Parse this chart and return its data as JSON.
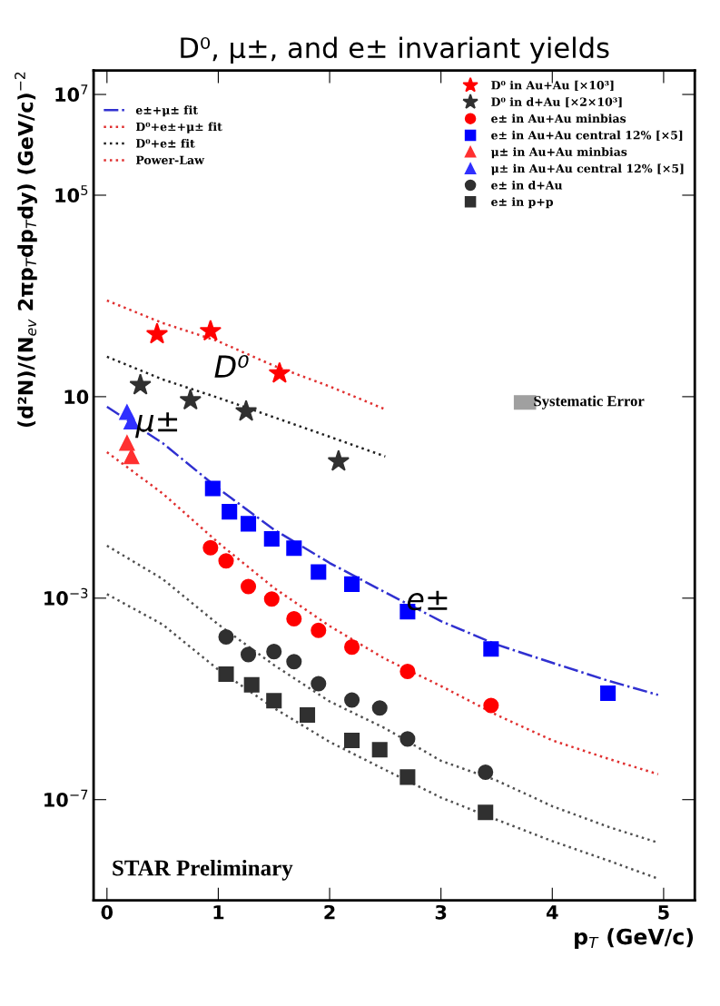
{
  "chart_data": {
    "type": "scatter",
    "title": "D⁰, μ±, and e± invariant yields",
    "xlabel": "p$_{T}$ (GeV/c)",
    "ylabel": "(d²N)/(N$_{ev}$ 2πp$_{T}$dp$_{T}$dy) (GeV/c)$^{−2}$",
    "log": "y",
    "xlim": [
      -0.12,
      5.28
    ],
    "ylim": [
      1e-09,
      30000000.0
    ],
    "xticks": [
      0,
      1,
      2,
      3,
      4,
      5
    ],
    "yticks": [
      {
        "value": 1e-07,
        "label": "10$^{−7}$"
      },
      {
        "value": 0.001,
        "label": "10$^{−3}$"
      },
      {
        "value": 10,
        "label": "10"
      },
      {
        "value": 100000,
        "label": "10$^{5}$"
      },
      {
        "value": 10000000,
        "label": "10$^{7}$"
      }
    ],
    "grid": false,
    "legend": "top",
    "series": [
      {
        "type": "line",
        "name": "e±+μ± fit",
        "color": "#3030d0",
        "line_style": "dashdot",
        "marker": "none",
        "x": [
          0,
          0.5,
          1,
          1.5,
          2,
          2.5,
          3,
          3.5,
          4,
          4.5,
          4.95
        ],
        "values": [
          6.3,
          1.2,
          0.15,
          0.023,
          0.005,
          0.0013,
          0.00035,
          0.00012,
          5.2e-05,
          2.3e-05,
          1.2e-05
        ]
      },
      {
        "type": "line",
        "name": "D⁰+e±+μ± fit",
        "color": "#e03030",
        "line_style": "dotted",
        "marker": "none",
        "x": [
          0,
          0.5,
          1,
          1.5,
          2,
          2.5
        ],
        "values": [
          810,
          290,
          126,
          41,
          16,
          5.6
        ]
      },
      {
        "type": "line",
        "name": "D⁰+e± fit",
        "color": "#202020",
        "line_style": "dotted",
        "marker": "none",
        "x": [
          0,
          0.5,
          1,
          1.5,
          2,
          2.5
        ],
        "values": [
          62,
          22,
          9.5,
          3.9,
          1.6,
          0.65
        ]
      },
      {
        "type": "line",
        "name": "Power-Law",
        "color": "#e03030",
        "line_style": "dotted",
        "marker": "none",
        "x": [
          0,
          0.5,
          1,
          1.5,
          2,
          2.5,
          3,
          3.5,
          4,
          4.5,
          4.95
        ],
        "values": [
          0.79,
          0.12,
          0.0126,
          0.0016,
          0.00028,
          6.2e-05,
          1.8e-05,
          4.8e-06,
          1.5e-06,
          6.5e-07,
          3.2e-07
        ]
      },
      {
        "type": "line",
        "color": "#505050",
        "line_style": "dotted",
        "marker": "none",
        "x": [
          0,
          0.5,
          1,
          1.5,
          2,
          2.5,
          3,
          3.5,
          4,
          4.5,
          4.95
        ],
        "values": [
          0.011,
          0.0024,
          0.0003,
          4.7e-05,
          8.9e-06,
          2.6e-06,
          5.9e-07,
          2.4e-07,
          7.4e-08,
          2.9e-08,
          1.4e-08
        ]
      },
      {
        "type": "line",
        "color": "#505050",
        "line_style": "dotted",
        "marker": "none",
        "x": [
          0,
          0.5,
          1,
          1.5,
          2,
          2.5,
          3,
          3.5,
          4,
          4.5,
          4.95
        ],
        "values": [
          0.0012,
          0.0003,
          3.8e-05,
          6.6e-06,
          1.4e-06,
          3.9e-07,
          1.1e-07,
          4e-08,
          1.5e-08,
          6.2e-09,
          2.7e-09
        ]
      },
      {
        "name": "D⁰ in Au+Au [×10³]",
        "color": "#ff0000",
        "marker": "star",
        "x": [
          0.45,
          0.93,
          1.55
        ],
        "values": [
          174,
          200,
          29
        ]
      },
      {
        "name": "D⁰ in d+Au [×2×10³]",
        "color": "#303030",
        "marker": "star",
        "x": [
          0.3,
          0.75,
          1.25,
          2.08
        ],
        "values": [
          17,
          8.5,
          5.1,
          0.52
        ]
      },
      {
        "name": "e± in Au+Au minbias",
        "color": "#ff0000",
        "marker": "circle",
        "x": [
          0.93,
          1.07,
          1.27,
          1.48,
          1.68,
          1.9,
          2.2,
          2.7,
          3.45
        ],
        "values": [
          0.01,
          0.0055,
          0.0017,
          0.00096,
          0.00039,
          0.00023,
          0.000107,
          3.5e-05,
          7.4e-06
        ]
      },
      {
        "name": "e± in Au+Au central 12% [×5]",
        "color": "#0000ff",
        "marker": "square",
        "x": [
          0.95,
          1.1,
          1.27,
          1.48,
          1.68,
          1.9,
          2.2,
          2.7,
          3.45,
          4.5
        ],
        "values": [
          0.15,
          0.052,
          0.03,
          0.015,
          0.0098,
          0.0033,
          0.0019,
          0.00054,
          9.8e-05,
          1.3e-05
        ]
      },
      {
        "name": "μ± in Au+Au minbias",
        "color": "#ff3030",
        "marker": "triangle",
        "x": [
          0.18,
          0.22
        ],
        "values": [
          1.2,
          0.65
        ]
      },
      {
        "name": "μ± in Au+Au central 12% [×5]",
        "color": "#3030ff",
        "marker": "triangle",
        "x": [
          0.18,
          0.22
        ],
        "values": [
          4.9,
          3.2
        ]
      },
      {
        "name": "e± in d+Au",
        "color": "#303030",
        "marker": "circle",
        "x": [
          1.07,
          1.27,
          1.5,
          1.68,
          1.9,
          2.2,
          2.45,
          2.7,
          3.4
        ],
        "values": [
          0.00017,
          7.6e-05,
          8.7e-05,
          5.5e-05,
          2e-05,
          9.5e-06,
          6.6e-06,
          1.6e-06,
          3.5e-07
        ]
      },
      {
        "name": "e± in p+p",
        "color": "#303030",
        "marker": "square",
        "x": [
          1.07,
          1.3,
          1.5,
          1.8,
          2.2,
          2.45,
          2.7,
          3.4
        ],
        "values": [
          3.1e-05,
          1.9e-05,
          9.2e-06,
          4.8e-06,
          1.5e-06,
          9.8e-07,
          2.8e-07,
          5.6e-08
        ]
      }
    ],
    "annotations": [
      "D⁰",
      "μ±",
      "e±",
      "Systematic Error",
      "STAR Preliminary"
    ]
  }
}
